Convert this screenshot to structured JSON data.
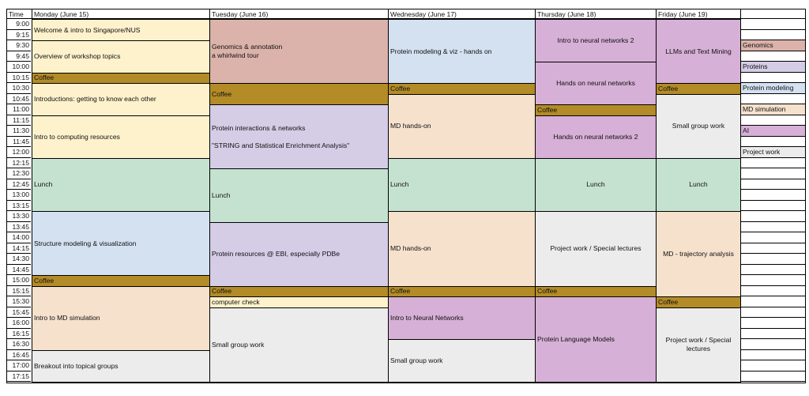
{
  "colors": {
    "genomics": "#dbb3aa",
    "proteins": "#d5cce6",
    "protein_modeling": "#d3e1f1",
    "md_simulation": "#f5e1cc",
    "ai": "#d6b0d6",
    "project_work": "#ececec",
    "coffee": "#b38b27",
    "intro": "#fdf2cc",
    "lunch": "#c5e2d1"
  },
  "header": {
    "time": "Time",
    "days": [
      "Monday (June 15)",
      "Tuesday (June 16)",
      "Wednesday (June 17)",
      "Thursday (June 18)",
      "Friday (June 19)"
    ]
  },
  "times": [
    "9:00",
    "9:15",
    "9:30",
    "9:45",
    "10:00",
    "10:15",
    "10:30",
    "10:45",
    "11:00",
    "11:15",
    "11:30",
    "11:45",
    "12:00",
    "12:15",
    "12:30",
    "12:45",
    "13:00",
    "13:15",
    "13:30",
    "13:45",
    "14:00",
    "14:15",
    "14:30",
    "14:45",
    "15:00",
    "15:15",
    "15:30",
    "15:45",
    "16:00",
    "16:15",
    "16:30",
    "16:45",
    "17:00",
    "17:15"
  ],
  "sessions": [
    {
      "day": 0,
      "start": 0,
      "end": 2,
      "text": "Welcome & intro to Singapore/NUS",
      "cat": "intro"
    },
    {
      "day": 0,
      "start": 2,
      "end": 5,
      "text": "Overview of workshop topics",
      "cat": "intro"
    },
    {
      "day": 0,
      "start": 5,
      "end": 6,
      "text": "Coffee",
      "cat": "coffee"
    },
    {
      "day": 0,
      "start": 6,
      "end": 9,
      "text": "Introductions: getting to know each other",
      "cat": "intro"
    },
    {
      "day": 0,
      "start": 9,
      "end": 13,
      "text": "Intro to computing resources",
      "cat": "intro"
    },
    {
      "day": 0,
      "start": 13,
      "end": 18,
      "text": "Lunch",
      "cat": "lunch"
    },
    {
      "day": 0,
      "start": 18,
      "end": 24,
      "text": "Structure modeling & visualization",
      "cat": "protein_modeling"
    },
    {
      "day": 0,
      "start": 24,
      "end": 25,
      "text": "Coffee",
      "cat": "coffee"
    },
    {
      "day": 0,
      "start": 25,
      "end": 31,
      "text": "Intro to MD simulation",
      "cat": "md_simulation"
    },
    {
      "day": 0,
      "start": 31,
      "end": 34,
      "text": "Breakout into topical groups",
      "cat": "project_work"
    },
    {
      "day": 1,
      "start": 0,
      "end": 6,
      "text": "Genomics & annotation\na whirlwind tour",
      "cat": "genomics"
    },
    {
      "day": 1,
      "start": 6,
      "end": 8,
      "text": "Coffee",
      "cat": "coffee"
    },
    {
      "day": 1,
      "start": 8,
      "end": 14,
      "text": "Protein interactions & networks\n\n\"STRING and Statistical Enrichment Analysis\"",
      "cat": "proteins"
    },
    {
      "day": 1,
      "start": 14,
      "end": 19,
      "text": "Lunch",
      "cat": "lunch"
    },
    {
      "day": 1,
      "start": 19,
      "end": 25,
      "text": "Protein resources @ EBI, especially PDBe",
      "cat": "proteins"
    },
    {
      "day": 1,
      "start": 25,
      "end": 26,
      "text": "Coffee",
      "cat": "coffee"
    },
    {
      "day": 1,
      "start": 26,
      "end": 27,
      "text": "computer check",
      "cat": "intro"
    },
    {
      "day": 1,
      "start": 27,
      "end": 34,
      "text": "Small group work",
      "cat": "project_work"
    },
    {
      "day": 2,
      "start": 0,
      "end": 6,
      "text": "Protein modeling & viz - hands on",
      "cat": "protein_modeling"
    },
    {
      "day": 2,
      "start": 6,
      "end": 7,
      "text": "Coffee",
      "cat": "coffee"
    },
    {
      "day": 2,
      "start": 7,
      "end": 13,
      "text": "MD hands-on",
      "cat": "md_simulation"
    },
    {
      "day": 2,
      "start": 13,
      "end": 18,
      "text": "Lunch",
      "cat": "lunch"
    },
    {
      "day": 2,
      "start": 18,
      "end": 25,
      "text": "MD hands-on",
      "cat": "md_simulation"
    },
    {
      "day": 2,
      "start": 25,
      "end": 26,
      "text": "Coffee",
      "cat": "coffee"
    },
    {
      "day": 2,
      "start": 26,
      "end": 30,
      "text": "Intro to Neural Networks",
      "cat": "ai"
    },
    {
      "day": 2,
      "start": 30,
      "end": 34,
      "text": "Small group work",
      "cat": "project_work"
    },
    {
      "day": 3,
      "start": 0,
      "end": 4,
      "text": "Intro to neural networks 2",
      "cat": "ai",
      "center": true
    },
    {
      "day": 3,
      "start": 4,
      "end": 8,
      "text": "Hands on neural networks",
      "cat": "ai",
      "center": true
    },
    {
      "day": 3,
      "start": 8,
      "end": 9,
      "text": "Coffee",
      "cat": "coffee"
    },
    {
      "day": 3,
      "start": 9,
      "end": 13,
      "text": "Hands on neural networks 2",
      "cat": "ai",
      "center": true
    },
    {
      "day": 3,
      "start": 13,
      "end": 18,
      "text": "Lunch",
      "cat": "lunch",
      "center": true
    },
    {
      "day": 3,
      "start": 18,
      "end": 25,
      "text": "Project work / Special lectures",
      "cat": "project_work",
      "center": true
    },
    {
      "day": 3,
      "start": 25,
      "end": 26,
      "text": "Coffee",
      "cat": "coffee"
    },
    {
      "day": 3,
      "start": 26,
      "end": 34,
      "text": "Protein Language Models",
      "cat": "ai"
    },
    {
      "day": 4,
      "start": 0,
      "end": 6,
      "text": "LLMs and Text Mining",
      "cat": "ai",
      "center": true
    },
    {
      "day": 4,
      "start": 6,
      "end": 7,
      "text": "Coffee",
      "cat": "coffee"
    },
    {
      "day": 4,
      "start": 7,
      "end": 13,
      "text": "Small group work",
      "cat": "project_work",
      "center": true
    },
    {
      "day": 4,
      "start": 13,
      "end": 18,
      "text": "Lunch",
      "cat": "lunch",
      "center": true
    },
    {
      "day": 4,
      "start": 18,
      "end": 26,
      "text": "MD - trajectory analysis",
      "cat": "md_simulation",
      "center": true
    },
    {
      "day": 4,
      "start": 26,
      "end": 27,
      "text": "Coffee",
      "cat": "coffee"
    },
    {
      "day": 4,
      "start": 27,
      "end": 34,
      "text": "Project work / Special\nlectures",
      "cat": "project_work",
      "center": true
    }
  ],
  "legend": [
    {
      "row": 2,
      "label": "Genomics",
      "cat": "genomics"
    },
    {
      "row": 4,
      "label": "Proteins",
      "cat": "proteins"
    },
    {
      "row": 6,
      "label": "Protein modeling",
      "cat": "protein_modeling"
    },
    {
      "row": 8,
      "label": "MD simulation",
      "cat": "md_simulation"
    },
    {
      "row": 10,
      "label": "AI",
      "cat": "ai"
    },
    {
      "row": 12,
      "label": "Project work",
      "cat": "project_work"
    }
  ]
}
